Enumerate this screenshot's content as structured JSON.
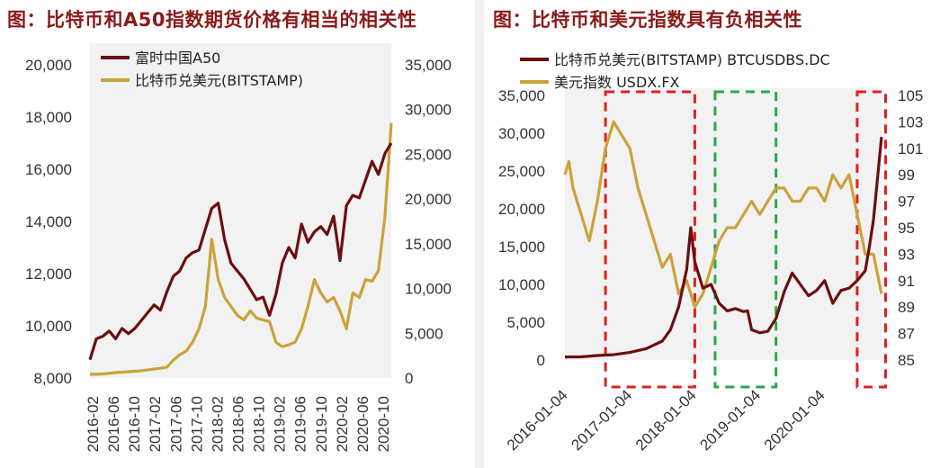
{
  "chart_data": [
    {
      "type": "line",
      "title": "图：比特币和A50指数期货价格有相当的相关性",
      "x_tick_labels": [
        "2016-02",
        "2016-06",
        "2016-10",
        "2017-02",
        "2017-06",
        "2017-10",
        "2018-02",
        "2018-06",
        "2018-10",
        "2019-02",
        "2019-06",
        "2019-10",
        "2020-02",
        "2020-06",
        "2020-10"
      ],
      "y_left": {
        "ticks": [
          "8,000",
          "10,000",
          "12,000",
          "14,000",
          "16,000",
          "18,000",
          "20,000"
        ],
        "range": [
          8000,
          20000
        ]
      },
      "y_right": {
        "ticks": [
          "0",
          "5,000",
          "10,000",
          "15,000",
          "20,000",
          "25,000",
          "30,000",
          "35,000"
        ],
        "range": [
          0,
          35000
        ]
      },
      "legend_position": "top-left",
      "grid": false,
      "series": [
        {
          "name": "富时中国A50",
          "axis": "left",
          "color": "#6b0f0f",
          "points": [
            [
              0,
              8700
            ],
            [
              1,
              9500
            ],
            [
              2,
              9600
            ],
            [
              3,
              9800
            ],
            [
              4,
              9500
            ],
            [
              5,
              9900
            ],
            [
              6,
              9700
            ],
            [
              7,
              9900
            ],
            [
              8,
              10200
            ],
            [
              9,
              10500
            ],
            [
              10,
              10800
            ],
            [
              11,
              10600
            ],
            [
              12,
              11300
            ],
            [
              13,
              11900
            ],
            [
              14,
              12100
            ],
            [
              15,
              12600
            ],
            [
              16,
              12800
            ],
            [
              17,
              12900
            ],
            [
              18,
              13700
            ],
            [
              19,
              14500
            ],
            [
              20,
              14700
            ],
            [
              21,
              13300
            ],
            [
              22,
              12400
            ],
            [
              23,
              12100
            ],
            [
              24,
              11800
            ],
            [
              25,
              11400
            ],
            [
              26,
              11000
            ],
            [
              27,
              11100
            ],
            [
              28,
              10400
            ],
            [
              29,
              11200
            ],
            [
              30,
              12400
            ],
            [
              31,
              13000
            ],
            [
              32,
              12600
            ],
            [
              33,
              13900
            ],
            [
              34,
              13200
            ],
            [
              35,
              13600
            ],
            [
              36,
              13800
            ],
            [
              37,
              13500
            ],
            [
              38,
              14200
            ],
            [
              39,
              12500
            ],
            [
              40,
              14600
            ],
            [
              41,
              15000
            ],
            [
              42,
              14900
            ],
            [
              43,
              15600
            ],
            [
              44,
              16300
            ],
            [
              45,
              15800
            ],
            [
              46,
              16600
            ],
            [
              47,
              17000
            ]
          ]
        },
        {
          "name": "比特币兑美元(BITSTAMP)",
          "axis": "right",
          "color": "#c9a33b",
          "points": [
            [
              0,
              400
            ],
            [
              2,
              450
            ],
            [
              4,
              600
            ],
            [
              6,
              700
            ],
            [
              8,
              800
            ],
            [
              10,
              1000
            ],
            [
              12,
              1200
            ],
            [
              13,
              2000
            ],
            [
              14,
              2600
            ],
            [
              15,
              3000
            ],
            [
              16,
              4000
            ],
            [
              17,
              5500
            ],
            [
              18,
              8000
            ],
            [
              19,
              15500
            ],
            [
              20,
              11000
            ],
            [
              21,
              9000
            ],
            [
              22,
              8000
            ],
            [
              23,
              7000
            ],
            [
              24,
              6500
            ],
            [
              25,
              7500
            ],
            [
              26,
              6700
            ],
            [
              27,
              6500
            ],
            [
              28,
              6300
            ],
            [
              29,
              4000
            ],
            [
              30,
              3500
            ],
            [
              31,
              3700
            ],
            [
              32,
              4000
            ],
            [
              33,
              5500
            ],
            [
              34,
              8000
            ],
            [
              35,
              11000
            ],
            [
              36,
              9500
            ],
            [
              37,
              8500
            ],
            [
              38,
              9000
            ],
            [
              39,
              7500
            ],
            [
              40,
              5500
            ],
            [
              41,
              9500
            ],
            [
              42,
              9000
            ],
            [
              43,
              11000
            ],
            [
              44,
              10800
            ],
            [
              45,
              12000
            ],
            [
              46,
              18000
            ],
            [
              47,
              28500
            ]
          ]
        }
      ]
    },
    {
      "type": "line",
      "title": "图：比特币和美元指数具有负相关性",
      "x_tick_labels": [
        "2016-01-04",
        "2017-01-04",
        "2018-01-04",
        "2019-01-04",
        "2020-01-04"
      ],
      "y_left": {
        "ticks": [
          "0",
          "5,000",
          "10,000",
          "15,000",
          "20,000",
          "25,000",
          "30,000",
          "35,000"
        ],
        "range": [
          0,
          35000
        ]
      },
      "y_right": {
        "ticks": [
          "85",
          "87",
          "89",
          "91",
          "93",
          "95",
          "97",
          "99",
          "101",
          "103",
          "105"
        ],
        "range": [
          85,
          105
        ]
      },
      "legend_position": "top",
      "grid": false,
      "series": [
        {
          "name": "比特币兑美元(BITSTAMP) BTCUSDBS.DC",
          "axis": "left",
          "color": "#6b0f0f",
          "points": [
            [
              0,
              400
            ],
            [
              2,
              420
            ],
            [
              4,
              600
            ],
            [
              6,
              700
            ],
            [
              8,
              1000
            ],
            [
              10,
              1500
            ],
            [
              12,
              2500
            ],
            [
              13,
              4000
            ],
            [
              14,
              7000
            ],
            [
              15,
              12000
            ],
            [
              15.5,
              17500
            ],
            [
              16,
              13000
            ],
            [
              17,
              9500
            ],
            [
              18,
              10000
            ],
            [
              19,
              7500
            ],
            [
              20,
              6500
            ],
            [
              21,
              6800
            ],
            [
              22,
              6400
            ],
            [
              22.5,
              6500
            ],
            [
              23,
              4000
            ],
            [
              24,
              3600
            ],
            [
              25,
              3800
            ],
            [
              26,
              5500
            ],
            [
              27,
              9000
            ],
            [
              28,
              11500
            ],
            [
              29,
              10000
            ],
            [
              30,
              8500
            ],
            [
              31,
              9200
            ],
            [
              32,
              10500
            ],
            [
              33,
              7500
            ],
            [
              34,
              9200
            ],
            [
              35,
              9500
            ],
            [
              36,
              10500
            ],
            [
              37,
              11800
            ],
            [
              37.5,
              15000
            ],
            [
              38,
              18500
            ],
            [
              38.5,
              24000
            ],
            [
              39,
              29500
            ]
          ]
        },
        {
          "name": "美元指数 USDX.FX",
          "axis": "right",
          "color": "#c9a33b",
          "points": [
            [
              0,
              99
            ],
            [
              0.5,
              100
            ],
            [
              1,
              98
            ],
            [
              2,
              96
            ],
            [
              3,
              94
            ],
            [
              4,
              97
            ],
            [
              5,
              101
            ],
            [
              6,
              103
            ],
            [
              7,
              102
            ],
            [
              8,
              101
            ],
            [
              9,
              98
            ],
            [
              10,
              96
            ],
            [
              11,
              94
            ],
            [
              12,
              92
            ],
            [
              13,
              93
            ],
            [
              14,
              90
            ],
            [
              15,
              91
            ],
            [
              16,
              89
            ],
            [
              17,
              90
            ],
            [
              18,
              92
            ],
            [
              19,
              94
            ],
            [
              20,
              95
            ],
            [
              21,
              95
            ],
            [
              22,
              96
            ],
            [
              23,
              97
            ],
            [
              24,
              96
            ],
            [
              25,
              97
            ],
            [
              26,
              98
            ],
            [
              27,
              98
            ],
            [
              28,
              97
            ],
            [
              29,
              97
            ],
            [
              30,
              98
            ],
            [
              31,
              98
            ],
            [
              32,
              97
            ],
            [
              33,
              99
            ],
            [
              34,
              98
            ],
            [
              35,
              99
            ],
            [
              36,
              96
            ],
            [
              37,
              93
            ],
            [
              38,
              93
            ],
            [
              39,
              90
            ]
          ]
        }
      ],
      "annotations": [
        {
          "kind": "dashed-rect",
          "color": "#e02020",
          "x_span_points": [
            5,
            16
          ]
        },
        {
          "kind": "dashed-rect",
          "color": "#2aa84a",
          "x_span_points": [
            18.5,
            26
          ]
        },
        {
          "kind": "dashed-rect",
          "color": "#e02020",
          "x_span_points": [
            36,
            39.5
          ]
        }
      ]
    }
  ]
}
